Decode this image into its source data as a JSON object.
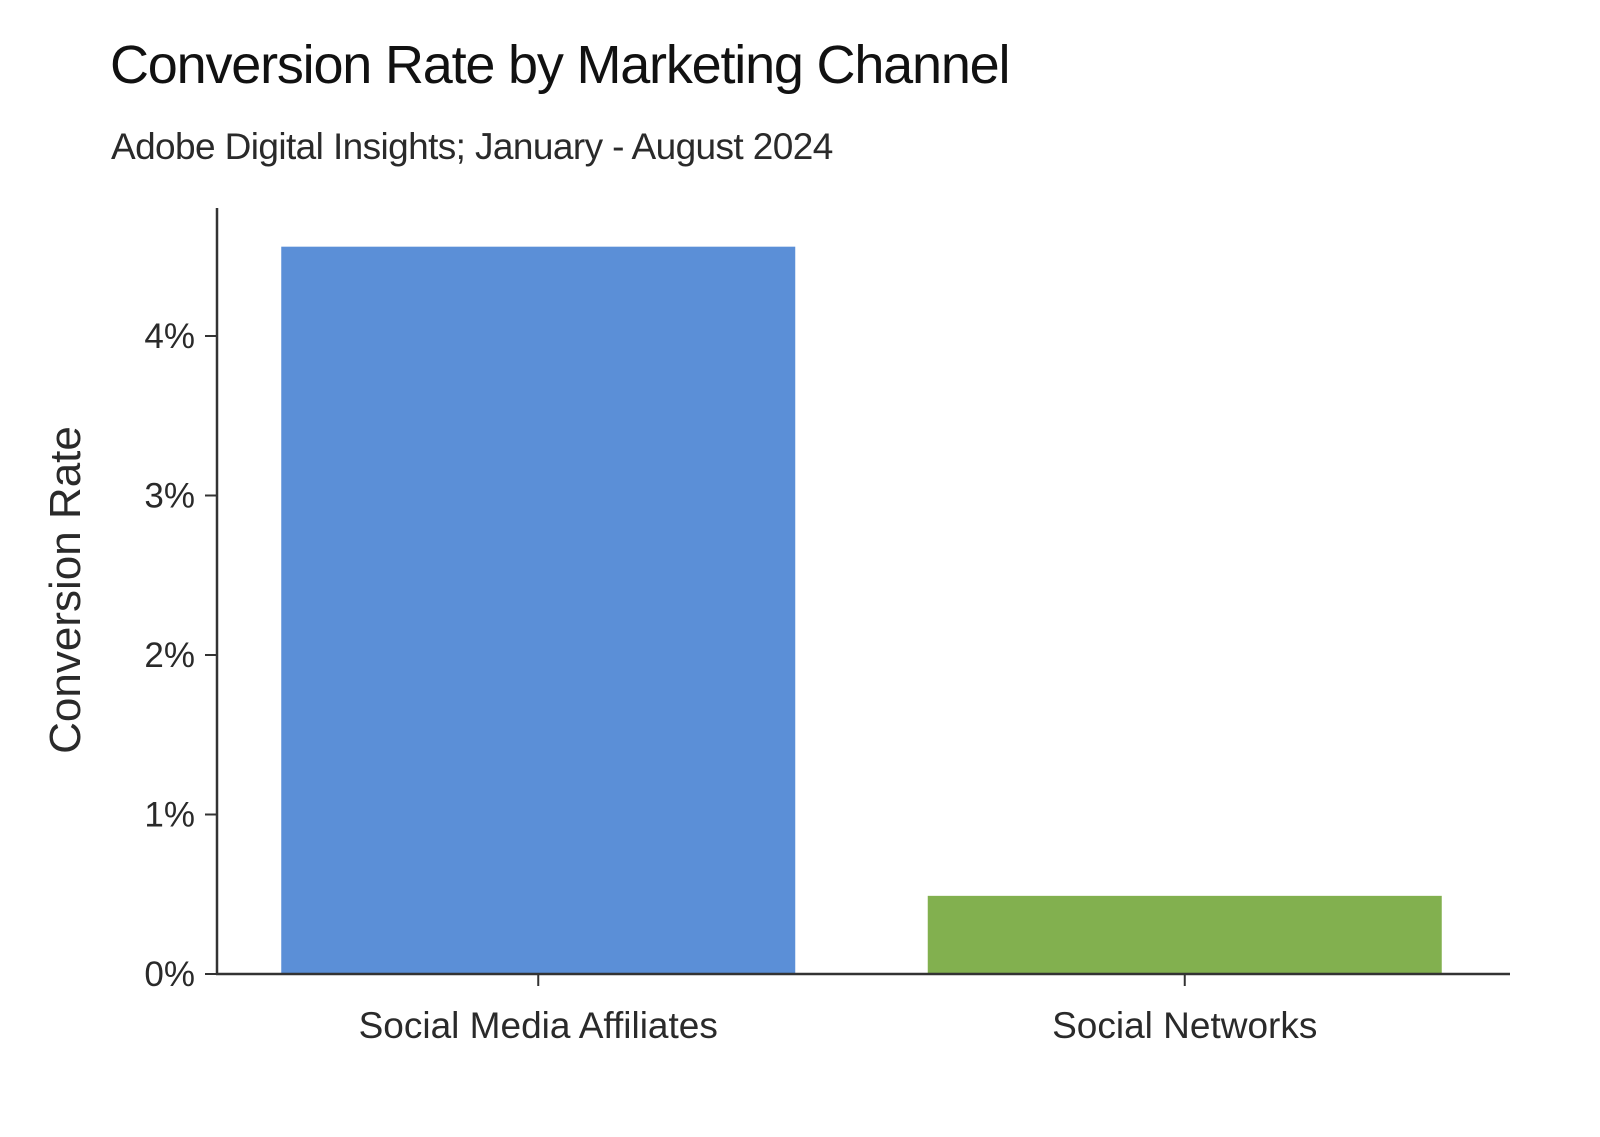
{
  "chart_data": {
    "type": "bar",
    "title": "Conversion Rate by Marketing Channel",
    "subtitle": "Adobe Digital Insights; January - August 2024",
    "xlabel": "",
    "ylabel": "Conversion Rate",
    "categories": [
      "Social Media Affiliates",
      "Social Networks"
    ],
    "values": [
      4.56,
      0.49
    ],
    "value_unit": "%",
    "ylim": [
      0,
      4.8
    ],
    "yticks": [
      0,
      1,
      2,
      3,
      4
    ],
    "ytick_labels": [
      "0%",
      "1%",
      "2%",
      "3%",
      "4%"
    ],
    "bar_colors": [
      "#5b8fd7",
      "#82b04f"
    ],
    "axis_color": "#333333",
    "grid": false,
    "legend": "none"
  }
}
